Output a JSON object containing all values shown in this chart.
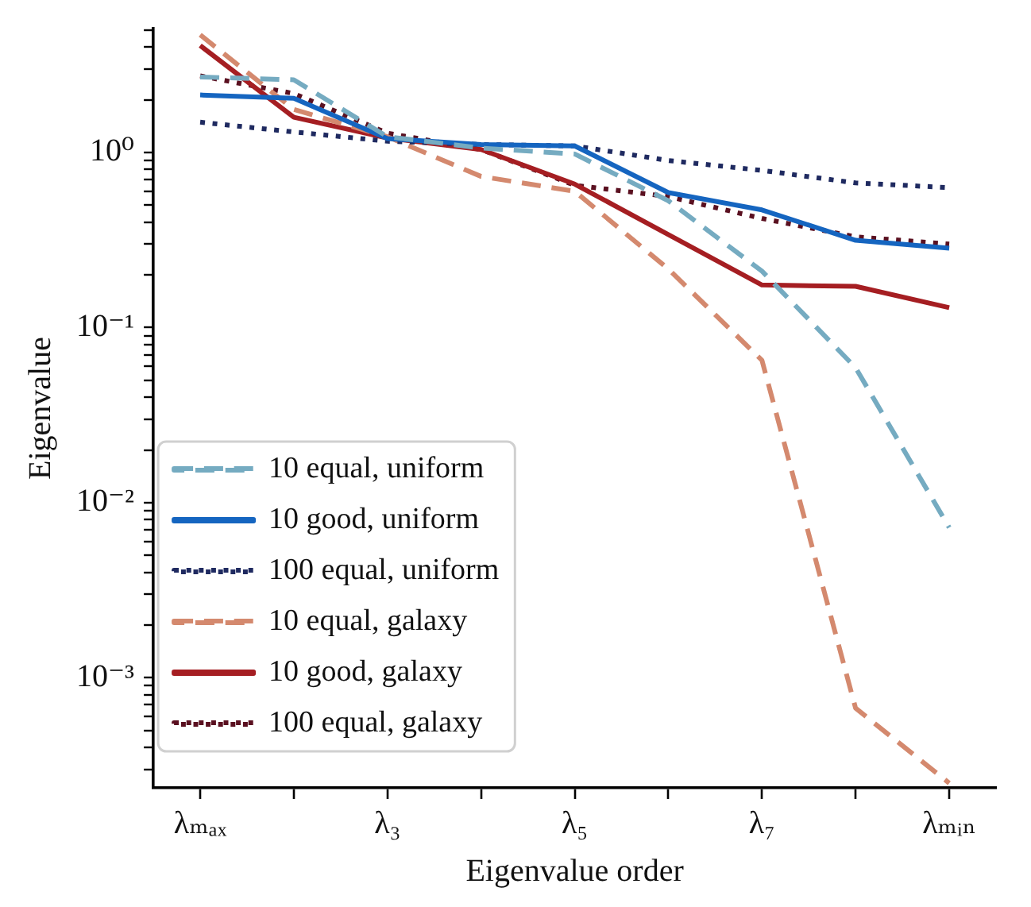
{
  "chart_data": {
    "type": "line",
    "xlabel": "Eigenvalue order",
    "ylabel": "Eigenvalue",
    "categories": [
      "λₘₐₓ",
      null,
      "λ₃",
      null,
      "λ₅",
      null,
      "λ₇",
      null,
      "λₘᵢₙ"
    ],
    "log": "y",
    "grid": false,
    "legend": "lower left",
    "marker": "none",
    "ylim": [
      0.000235,
      5.1
    ],
    "yticks": [
      {
        "value": 0.0003,
        "label": null
      },
      {
        "value": 0.0004,
        "label": null
      },
      {
        "value": 0.0005,
        "label": null
      },
      {
        "value": 0.0006,
        "label": null
      },
      {
        "value": 0.0007,
        "label": null
      },
      {
        "value": 0.0008,
        "label": null
      },
      {
        "value": 0.0009,
        "label": null
      },
      {
        "value": 0.001,
        "label": "10⁻³"
      },
      {
        "value": 0.002,
        "label": null
      },
      {
        "value": 0.003,
        "label": null
      },
      {
        "value": 0.004,
        "label": null
      },
      {
        "value": 0.005,
        "label": null
      },
      {
        "value": 0.006,
        "label": null
      },
      {
        "value": 0.007,
        "label": null
      },
      {
        "value": 0.008,
        "label": null
      },
      {
        "value": 0.009,
        "label": null
      },
      {
        "value": 0.01,
        "label": "10⁻²"
      },
      {
        "value": 0.02,
        "label": null
      },
      {
        "value": 0.03,
        "label": null
      },
      {
        "value": 0.04,
        "label": null
      },
      {
        "value": 0.05,
        "label": null
      },
      {
        "value": 0.06,
        "label": null
      },
      {
        "value": 0.07,
        "label": null
      },
      {
        "value": 0.08,
        "label": null
      },
      {
        "value": 0.09,
        "label": null
      },
      {
        "value": 0.1,
        "label": "10⁻¹"
      },
      {
        "value": 0.2,
        "label": null
      },
      {
        "value": 0.3,
        "label": null
      },
      {
        "value": 0.4,
        "label": null
      },
      {
        "value": 0.5,
        "label": null
      },
      {
        "value": 0.6,
        "label": null
      },
      {
        "value": 0.7,
        "label": null
      },
      {
        "value": 0.8,
        "label": null
      },
      {
        "value": 0.9,
        "label": null
      },
      {
        "value": 1,
        "label": "10⁰"
      },
      {
        "value": 2,
        "label": null
      },
      {
        "value": 3,
        "label": null
      },
      {
        "value": 4,
        "label": null
      },
      {
        "value": 5,
        "label": null
      }
    ],
    "series": [
      {
        "name": "10 equal, uniform",
        "color": "#75abc1",
        "line_style": "dashed",
        "values": [
          2.7,
          2.6,
          1.23,
          1.06,
          0.98,
          0.53,
          0.21,
          0.059,
          0.0072
        ]
      },
      {
        "name": "10 good, uniform",
        "color": "#1565c0",
        "line_style": "solid",
        "values": [
          2.13,
          2.04,
          1.2,
          1.11,
          1.09,
          0.59,
          0.47,
          0.315,
          0.284
        ]
      },
      {
        "name": "100 equal, uniform",
        "color": "#1f2a60",
        "line_style": "dotted",
        "values": [
          1.49,
          1.31,
          1.16,
          1.11,
          1.09,
          0.9,
          0.79,
          0.67,
          0.63
        ]
      },
      {
        "name": "10 equal, galaxy",
        "color": "#d4896e",
        "line_style": "dashed",
        "values": [
          4.7,
          1.76,
          1.23,
          0.73,
          0.6,
          0.216,
          0.065,
          0.00067,
          0.00025
        ]
      },
      {
        "name": "10 good, galaxy",
        "color": "#a51e22",
        "line_style": "solid",
        "values": [
          4.08,
          1.59,
          1.21,
          1.04,
          0.66,
          0.34,
          0.175,
          0.172,
          0.13
        ]
      },
      {
        "name": "100 equal, galaxy",
        "color": "#5a1020",
        "line_style": "dotted",
        "values": [
          2.74,
          2.17,
          1.29,
          1.04,
          0.65,
          0.56,
          0.42,
          0.33,
          0.3
        ]
      }
    ]
  }
}
